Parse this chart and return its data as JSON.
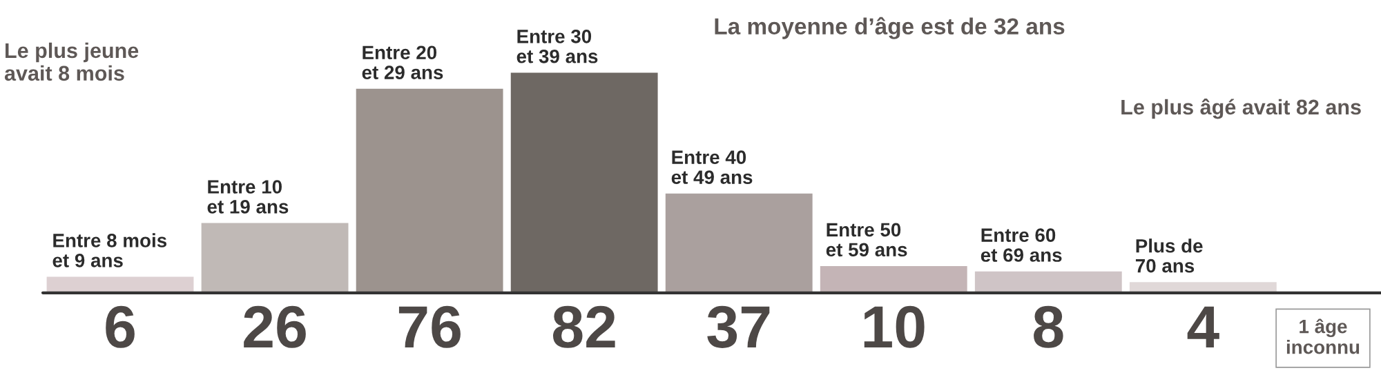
{
  "chart_data": {
    "type": "bar",
    "categories": [
      "Entre 8 mois\net 9 ans",
      "Entre 10\net 19 ans",
      "Entre 20\net 29 ans",
      "Entre 30\net 39 ans",
      "Entre 40\net 49 ans",
      "Entre 50\net 59 ans",
      "Entre 60\net 69 ans",
      "Plus de\n70 ans"
    ],
    "values": [
      6,
      26,
      76,
      82,
      37,
      10,
      8,
      4
    ],
    "colors": [
      "#ddd0d2",
      "#c0b9b6",
      "#9c938e",
      "#6e6863",
      "#aaa09e",
      "#c4b4b6",
      "#cfc4c6",
      "#e0d8d8"
    ],
    "data_labels": true,
    "annotations": [
      "Le plus jeune\navait 8 mois",
      "La moyenne d’âge est de 32 ans",
      "Le plus âgé avait 82 ans",
      "1 âge\ninconnu"
    ]
  }
}
